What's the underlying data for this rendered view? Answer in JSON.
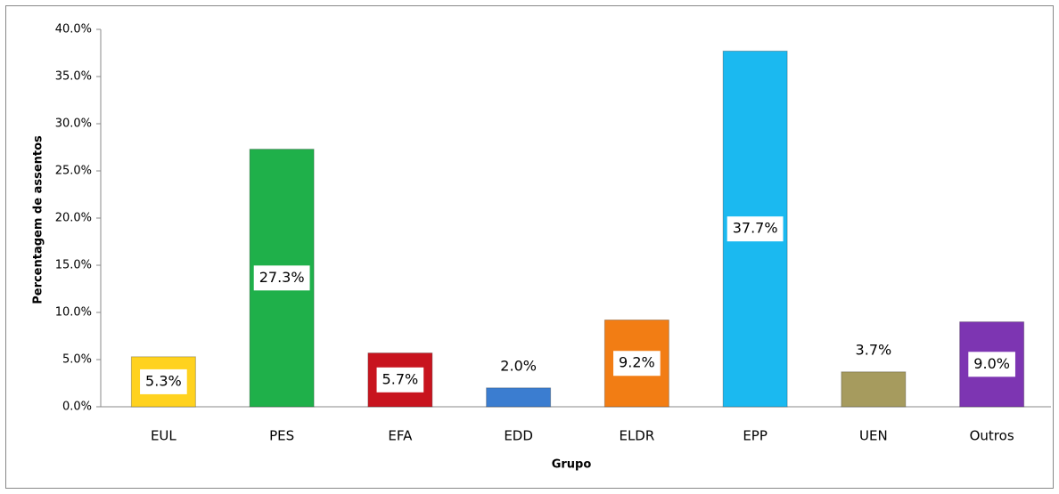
{
  "chart_data": {
    "type": "bar",
    "categories": [
      "EUL",
      "PES",
      "EFA",
      "EDD",
      "ELDR",
      "EPP",
      "UEN",
      "Outros"
    ],
    "values": [
      5.3,
      27.3,
      5.7,
      2.0,
      9.2,
      37.7,
      3.7,
      9.0
    ],
    "value_labels": [
      "5.3%",
      "27.3%",
      "5.7%",
      "2.0%",
      "9.2%",
      "37.7%",
      "3.7%",
      "9.0%"
    ],
    "colors": [
      "#ffd21f",
      "#1fb04a",
      "#c8141e",
      "#3b7dd0",
      "#f27d14",
      "#1bb9f0",
      "#a69b5e",
      "#7d35b2"
    ],
    "xlabel": "Grupo",
    "ylabel": "Percentagem de assentos",
    "ylim": [
      0,
      40
    ],
    "yticks": [
      {
        "value": 0,
        "label": "0.0%"
      },
      {
        "value": 5,
        "label": "5.0%"
      },
      {
        "value": 10,
        "label": "10.0%"
      },
      {
        "value": 15,
        "label": "15.0%"
      },
      {
        "value": 20,
        "label": "20.0%"
      },
      {
        "value": 25,
        "label": "25.0%"
      },
      {
        "value": 30,
        "label": "30.0%"
      },
      {
        "value": 35,
        "label": "35.0%"
      },
      {
        "value": 40,
        "label": "40.0%"
      }
    ]
  }
}
